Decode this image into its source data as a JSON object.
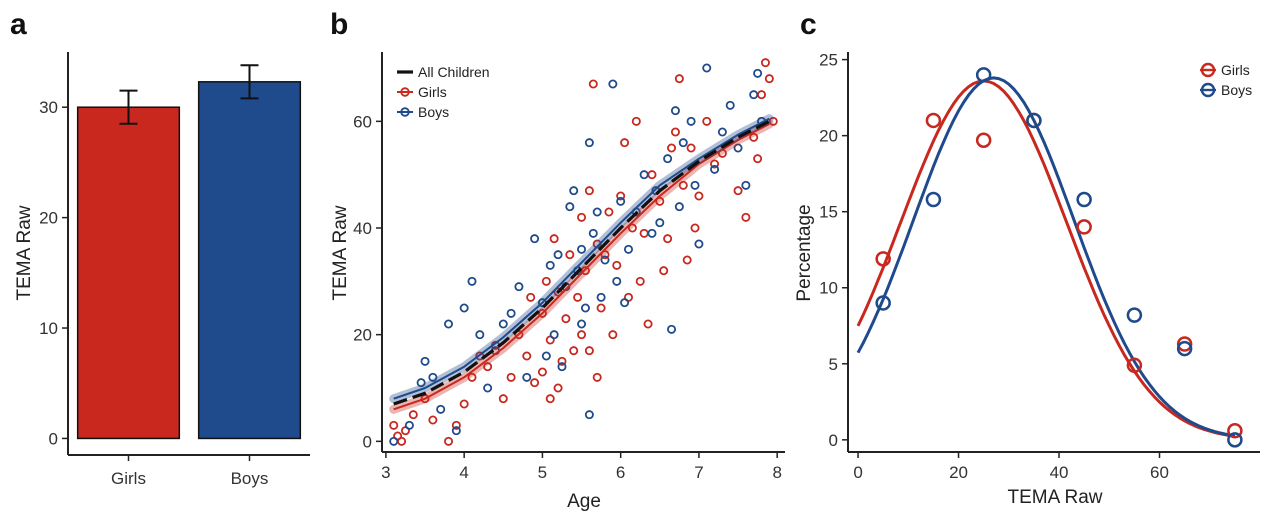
{
  "colors": {
    "girls": "#c8281e",
    "boys": "#1f4a8c",
    "all": "#111111"
  },
  "chart_data": [
    {
      "panel": "a",
      "type": "bar",
      "categories": [
        "Girls",
        "Boys"
      ],
      "values": [
        30.0,
        32.3
      ],
      "errors": [
        1.5,
        1.5
      ],
      "ylabel": "TEMA Raw",
      "xlabel": "",
      "ylim": [
        -1.5,
        35
      ],
      "yticks": [
        0,
        10,
        20,
        30
      ],
      "grid": false
    },
    {
      "panel": "b",
      "type": "scatter",
      "xlabel": "Age",
      "ylabel": "TEMA Raw",
      "xlim": [
        2.95,
        8.1
      ],
      "ylim": [
        -2,
        73
      ],
      "xticks": [
        3,
        4,
        5,
        6,
        7,
        8
      ],
      "yticks": [
        0,
        20,
        40,
        60
      ],
      "legend": {
        "placement": "top-left",
        "entries": [
          "All Children",
          "Girls",
          "Boys"
        ]
      },
      "grid": false,
      "series": [
        {
          "name": "Girls",
          "points": [
            [
              3.1,
              3
            ],
            [
              3.15,
              1
            ],
            [
              3.2,
              0
            ],
            [
              3.25,
              2
            ],
            [
              3.35,
              5
            ],
            [
              3.5,
              8
            ],
            [
              3.6,
              4
            ],
            [
              3.8,
              0
            ],
            [
              3.9,
              3
            ],
            [
              4.0,
              7
            ],
            [
              4.1,
              12
            ],
            [
              4.2,
              16
            ],
            [
              4.3,
              14
            ],
            [
              4.4,
              18
            ],
            [
              4.5,
              8
            ],
            [
              4.6,
              12
            ],
            [
              4.7,
              20
            ],
            [
              4.8,
              16
            ],
            [
              4.85,
              27
            ],
            [
              4.9,
              11
            ],
            [
              5.0,
              13
            ],
            [
              5.0,
              24
            ],
            [
              5.05,
              30
            ],
            [
              5.1,
              8
            ],
            [
              5.1,
              19
            ],
            [
              5.15,
              38
            ],
            [
              5.2,
              10
            ],
            [
              5.2,
              28
            ],
            [
              5.25,
              15
            ],
            [
              5.3,
              23
            ],
            [
              5.35,
              35
            ],
            [
              5.4,
              17
            ],
            [
              5.45,
              27
            ],
            [
              5.5,
              20
            ],
            [
              5.5,
              42
            ],
            [
              5.55,
              32
            ],
            [
              5.6,
              17
            ],
            [
              5.6,
              47
            ],
            [
              5.65,
              67
            ],
            [
              5.7,
              12
            ],
            [
              5.7,
              37
            ],
            [
              5.75,
              25
            ],
            [
              5.8,
              35
            ],
            [
              5.85,
              43
            ],
            [
              5.9,
              20
            ],
            [
              5.95,
              33
            ],
            [
              6.0,
              46
            ],
            [
              6.05,
              56
            ],
            [
              6.1,
              27
            ],
            [
              6.15,
              40
            ],
            [
              6.2,
              60
            ],
            [
              6.25,
              30
            ],
            [
              6.3,
              39
            ],
            [
              6.35,
              22
            ],
            [
              6.4,
              50
            ],
            [
              6.5,
              45
            ],
            [
              6.55,
              32
            ],
            [
              6.6,
              38
            ],
            [
              6.65,
              55
            ],
            [
              6.7,
              58
            ],
            [
              6.75,
              68
            ],
            [
              6.8,
              48
            ],
            [
              6.85,
              34
            ],
            [
              6.9,
              55
            ],
            [
              6.95,
              40
            ],
            [
              7.0,
              46
            ],
            [
              7.1,
              60
            ],
            [
              7.2,
              52
            ],
            [
              7.3,
              54
            ],
            [
              7.5,
              47
            ],
            [
              7.6,
              42
            ],
            [
              7.7,
              57
            ],
            [
              7.75,
              53
            ],
            [
              7.8,
              65
            ],
            [
              7.85,
              71
            ],
            [
              7.9,
              68
            ],
            [
              7.95,
              60
            ]
          ]
        },
        {
          "name": "Boys",
          "points": [
            [
              3.1,
              0
            ],
            [
              3.3,
              3
            ],
            [
              3.45,
              11
            ],
            [
              3.5,
              15
            ],
            [
              3.6,
              12
            ],
            [
              3.7,
              6
            ],
            [
              3.8,
              22
            ],
            [
              3.9,
              2
            ],
            [
              4.0,
              25
            ],
            [
              4.1,
              30
            ],
            [
              4.2,
              20
            ],
            [
              4.3,
              10
            ],
            [
              4.4,
              17
            ],
            [
              4.5,
              22
            ],
            [
              4.6,
              24
            ],
            [
              4.7,
              29
            ],
            [
              4.8,
              12
            ],
            [
              4.9,
              38
            ],
            [
              5.0,
              26
            ],
            [
              5.05,
              16
            ],
            [
              5.1,
              33
            ],
            [
              5.15,
              20
            ],
            [
              5.2,
              35
            ],
            [
              5.25,
              14
            ],
            [
              5.3,
              29
            ],
            [
              5.35,
              44
            ],
            [
              5.4,
              47
            ],
            [
              5.45,
              32
            ],
            [
              5.5,
              22
            ],
            [
              5.5,
              36
            ],
            [
              5.55,
              25
            ],
            [
              5.6,
              56
            ],
            [
              5.6,
              5
            ],
            [
              5.65,
              39
            ],
            [
              5.7,
              43
            ],
            [
              5.75,
              27
            ],
            [
              5.8,
              34
            ],
            [
              5.9,
              67
            ],
            [
              5.95,
              30
            ],
            [
              6.0,
              45
            ],
            [
              6.05,
              26
            ],
            [
              6.1,
              36
            ],
            [
              6.2,
              43
            ],
            [
              6.3,
              50
            ],
            [
              6.4,
              39
            ],
            [
              6.45,
              47
            ],
            [
              6.5,
              41
            ],
            [
              6.6,
              53
            ],
            [
              6.65,
              21
            ],
            [
              6.7,
              62
            ],
            [
              6.75,
              44
            ],
            [
              6.8,
              56
            ],
            [
              6.9,
              60
            ],
            [
              6.95,
              48
            ],
            [
              7.0,
              37
            ],
            [
              7.1,
              70
            ],
            [
              7.2,
              51
            ],
            [
              7.3,
              58
            ],
            [
              7.4,
              63
            ],
            [
              7.5,
              55
            ],
            [
              7.6,
              48
            ],
            [
              7.7,
              65
            ],
            [
              7.75,
              69
            ],
            [
              7.8,
              60
            ]
          ]
        }
      ],
      "fits": [
        {
          "name": "All Children",
          "x": [
            3.1,
            3.5,
            4.0,
            4.5,
            5.0,
            5.5,
            6.0,
            6.5,
            7.0,
            7.5,
            7.9
          ],
          "y": [
            7,
            9,
            13,
            18.5,
            25,
            32.5,
            40,
            47,
            52.5,
            57,
            60
          ]
        },
        {
          "name": "Girls",
          "x": [
            3.1,
            3.5,
            4.0,
            4.5,
            5.0,
            5.5,
            6.0,
            6.5,
            7.0,
            7.5,
            7.9
          ],
          "y": [
            6,
            8,
            12,
            17.5,
            24,
            31.5,
            39,
            46,
            52,
            56.5,
            59.5
          ]
        },
        {
          "name": "Boys",
          "x": [
            3.1,
            3.5,
            4.0,
            4.5,
            5.0,
            5.5,
            6.0,
            6.5,
            7.0,
            7.5,
            7.9
          ],
          "y": [
            8,
            10,
            14,
            19.5,
            26,
            33.5,
            41,
            48,
            53,
            57.5,
            60.5
          ]
        }
      ]
    },
    {
      "panel": "c",
      "type": "scatter",
      "xlabel": "TEMA Raw",
      "ylabel": "Percentage",
      "xlim": [
        -2,
        80
      ],
      "ylim": [
        -0.8,
        25.5
      ],
      "xticks": [
        0,
        20,
        40,
        60
      ],
      "yticks": [
        0,
        5,
        10,
        15,
        20,
        25
      ],
      "legend": {
        "placement": "top-right",
        "entries": [
          "Girls",
          "Boys"
        ]
      },
      "grid": false,
      "series": [
        {
          "name": "Girls",
          "x": [
            5,
            15,
            25,
            35,
            45,
            55,
            65,
            75
          ],
          "y": [
            11.9,
            21.0,
            19.7,
            21.0,
            14.0,
            4.9,
            6.3,
            0.6
          ]
        },
        {
          "name": "Boys",
          "x": [
            5,
            15,
            25,
            35,
            45,
            55,
            65,
            75
          ],
          "y": [
            9.0,
            15.8,
            24.0,
            21.0,
            15.8,
            8.2,
            6.0,
            0.0
          ]
        }
      ],
      "fits": [
        {
          "name": "Girls",
          "model": "gaussian",
          "peak": 23.6,
          "mean": 25,
          "sd": 16.5,
          "x_range": [
            0,
            75
          ]
        },
        {
          "name": "Boys",
          "model": "gaussian",
          "peak": 23.8,
          "mean": 27,
          "sd": 16,
          "x_range": [
            0,
            75
          ]
        }
      ]
    }
  ]
}
